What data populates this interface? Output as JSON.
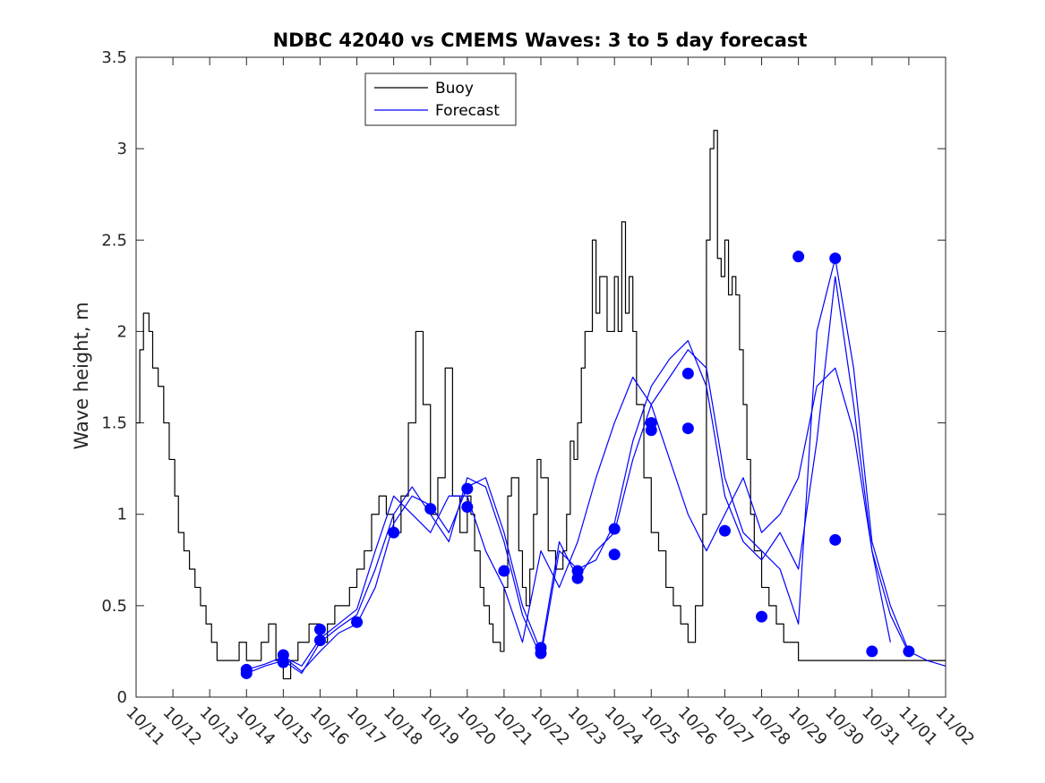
{
  "chart_data": {
    "type": "line",
    "title": "NDBC 42040 vs CMEMS Waves: 3 to 5 day forecast",
    "xlabel": "",
    "ylabel": "Wave height, m",
    "xlim": [
      0,
      22
    ],
    "ylim": [
      0,
      3.5
    ],
    "x_tick_labels": [
      "10/11",
      "10/12",
      "10/13",
      "10/14",
      "10/15",
      "10/16",
      "10/17",
      "10/18",
      "10/19",
      "10/20",
      "10/21",
      "10/22",
      "10/23",
      "10/24",
      "10/25",
      "10/26",
      "10/27",
      "10/28",
      "10/29",
      "10/30",
      "10/31",
      "11/01",
      "11/02"
    ],
    "y_ticks": [
      0,
      0.5,
      1,
      1.5,
      2,
      2.5,
      3,
      3.5
    ],
    "y_tick_labels": [
      "0",
      "0.5",
      "1",
      "1.5",
      "2",
      "2.5",
      "3",
      "3.5"
    ],
    "legend": {
      "position": "top-center",
      "entries": [
        "Buoy",
        "Forecast"
      ]
    },
    "colors": {
      "buoy": "#000000",
      "forecast": "#0000ff"
    },
    "series": [
      {
        "name": "Buoy",
        "style": "step",
        "x": [
          0,
          0.1,
          0.2,
          0.35,
          0.45,
          0.6,
          0.75,
          0.9,
          1.05,
          1.15,
          1.3,
          1.45,
          1.6,
          1.75,
          1.9,
          2.05,
          2.2,
          2.35,
          2.5,
          2.65,
          2.8,
          3.0,
          3.2,
          3.4,
          3.6,
          3.8,
          4.0,
          4.2,
          4.4,
          4.5,
          4.7,
          4.8,
          5.0,
          5.2,
          5.4,
          5.6,
          5.8,
          6.0,
          6.2,
          6.4,
          6.6,
          6.8,
          7.0,
          7.2,
          7.4,
          7.6,
          7.8,
          8.0,
          8.2,
          8.4,
          8.6,
          8.8,
          9.0,
          9.1,
          9.2,
          9.35,
          9.45,
          9.6,
          9.7,
          9.8,
          9.9,
          10.0,
          10.1,
          10.2,
          10.4,
          10.5,
          10.6,
          10.7,
          10.8,
          10.9,
          11.0,
          11.2,
          11.4,
          11.6,
          11.7,
          11.8,
          11.9,
          12.0,
          12.1,
          12.2,
          12.4,
          12.5,
          12.6,
          12.8,
          13.0,
          13.1,
          13.2,
          13.3,
          13.4,
          13.5,
          13.6,
          13.8,
          14.0,
          14.2,
          14.4,
          14.6,
          14.8,
          15.0,
          15.2,
          15.4,
          15.5,
          15.6,
          15.7,
          15.8,
          15.9,
          16.0,
          16.1,
          16.2,
          16.3,
          16.4,
          16.5,
          16.6,
          16.7,
          16.8,
          17.0,
          17.2,
          17.4,
          17.6,
          17.8,
          18.0,
          18.2,
          18.4,
          18.6,
          18.7,
          18.8,
          18.85,
          18.9,
          19.0,
          19.1,
          19.2,
          19.3,
          19.4,
          19.5,
          19.6,
          19.8,
          20.0,
          20.2,
          20.4,
          20.6,
          20.8,
          21.0,
          21.2,
          21.4,
          21.6,
          21.8,
          22.0
        ],
        "y": [
          1.5,
          1.9,
          2.1,
          2.0,
          1.8,
          1.7,
          1.5,
          1.3,
          1.1,
          0.9,
          0.8,
          0.7,
          0.6,
          0.5,
          0.4,
          0.3,
          0.2,
          0.2,
          0.2,
          0.2,
          0.3,
          0.2,
          0.2,
          0.3,
          0.4,
          0.2,
          0.1,
          0.2,
          0.3,
          0.3,
          0.4,
          0.4,
          0.3,
          0.4,
          0.5,
          0.5,
          0.6,
          0.7,
          0.8,
          1.0,
          1.1,
          1.0,
          0.9,
          1.1,
          1.5,
          2.0,
          1.6,
          1.0,
          1.2,
          1.8,
          1.1,
          0.9,
          1.1,
          1.0,
          0.8,
          0.6,
          0.5,
          0.4,
          0.3,
          0.3,
          0.25,
          0.6,
          1.1,
          1.2,
          0.8,
          0.6,
          0.5,
          0.7,
          1.0,
          1.3,
          1.2,
          0.8,
          0.7,
          0.8,
          1.0,
          1.4,
          1.3,
          1.5,
          1.8,
          2.0,
          2.5,
          2.1,
          2.3,
          2.0,
          2.3,
          2.0,
          2.6,
          2.1,
          2.3,
          2.0,
          1.6,
          1.2,
          0.9,
          0.8,
          0.6,
          0.5,
          0.4,
          0.3,
          0.5,
          1.0,
          2.5,
          3.0,
          3.1,
          2.4,
          2.3,
          2.5,
          2.2,
          2.3,
          2.2,
          1.9,
          1.6,
          1.3,
          1.0,
          0.8,
          0.6,
          0.5,
          0.4,
          0.3,
          0.3,
          0.2,
          0.2,
          0.2,
          0.2,
          0.2,
          0.2,
          0.2,
          0.2,
          0.2,
          0.2,
          0.2,
          0.2,
          0.2,
          0.2,
          0.2,
          0.2,
          0.2,
          0.2,
          0.2,
          0.2,
          0.2,
          0.2,
          0.2,
          0.2,
          0.2,
          0.2,
          0.2
        ]
      },
      {
        "name": "Forecast",
        "x": [
          3.0,
          3.5,
          4.0,
          4.5,
          5.0,
          5.5,
          6.0,
          6.5,
          7.0,
          7.5,
          8.0,
          8.5,
          9.0,
          9.5,
          10.0,
          10.5,
          11.0,
          11.5,
          12.0,
          12.5,
          13.0,
          13.5,
          14.0,
          14.5,
          15.0,
          15.5,
          16.0,
          16.5,
          17.0,
          17.5,
          18.0,
          18.5,
          19.0,
          19.5,
          20.0,
          20.5,
          21.0,
          21.5,
          22.0
        ],
        "y": [
          0.15,
          0.18,
          0.22,
          0.14,
          0.25,
          0.35,
          0.4,
          0.6,
          0.95,
          1.1,
          1.05,
          0.9,
          1.15,
          1.2,
          0.9,
          0.5,
          0.25,
          0.85,
          0.65,
          0.8,
          0.9,
          1.3,
          1.6,
          1.75,
          1.9,
          1.8,
          1.2,
          0.9,
          0.8,
          0.7,
          0.4,
          2.0,
          2.4,
          1.8,
          0.85,
          0.5,
          0.25,
          0.2,
          0.17
        ]
      },
      {
        "name": "Forecast",
        "x": [
          3.0,
          3.5,
          4.0,
          4.5,
          5.0,
          5.5,
          6.0,
          6.5,
          7.0,
          7.5,
          8.0,
          8.5,
          9.0,
          9.5,
          10.0,
          10.5,
          11.0,
          11.5,
          12.0,
          12.5,
          13.0,
          13.5,
          14.0,
          14.5,
          15.0,
          15.5,
          16.0,
          16.5,
          17.0,
          17.5,
          18.0,
          18.5,
          19.0,
          19.5,
          20.0,
          20.5,
          21.0
        ],
        "y": [
          0.13,
          0.17,
          0.2,
          0.13,
          0.3,
          0.38,
          0.45,
          0.7,
          1.0,
          1.15,
          1.0,
          0.85,
          1.2,
          1.15,
          0.85,
          0.45,
          0.22,
          0.8,
          0.7,
          0.75,
          0.95,
          1.4,
          1.7,
          1.85,
          1.95,
          1.7,
          1.1,
          0.85,
          0.75,
          0.9,
          0.7,
          1.4,
          2.3,
          1.6,
          0.8,
          0.45,
          0.24
        ]
      },
      {
        "name": "Forecast",
        "x": [
          4.0,
          4.5,
          5.0,
          5.5,
          6.0,
          6.5,
          7.0,
          7.5,
          8.0,
          8.5,
          9.0,
          9.5,
          10.0,
          10.5,
          11.0,
          11.5,
          12.0,
          12.5,
          13.0,
          13.5,
          14.0,
          14.5,
          15.0,
          15.5,
          16.0,
          16.5,
          17.0,
          17.5,
          18.0,
          18.5,
          19.0,
          19.5,
          20.0,
          20.5
        ],
        "y": [
          0.22,
          0.17,
          0.32,
          0.4,
          0.48,
          0.8,
          1.1,
          1.0,
          0.9,
          1.1,
          1.1,
          0.8,
          0.6,
          0.3,
          0.8,
          0.6,
          0.85,
          1.2,
          1.5,
          1.75,
          1.6,
          1.3,
          1.0,
          0.8,
          1.0,
          1.2,
          0.9,
          1.0,
          1.2,
          1.7,
          1.8,
          1.45,
          0.8,
          0.3
        ]
      }
    ],
    "markers": {
      "name": "Forecast",
      "x": [
        3.0,
        3.0,
        4.0,
        4.0,
        5.0,
        5.0,
        6.0,
        7.0,
        8.0,
        9.0,
        9.0,
        10.0,
        11.0,
        11.0,
        12.0,
        12.0,
        13.0,
        13.0,
        14.0,
        14.0,
        15.0,
        15.0,
        16.0,
        17.0,
        18.0,
        19.0,
        19.0,
        20.0,
        21.0
      ],
      "y": [
        0.15,
        0.13,
        0.23,
        0.19,
        0.37,
        0.31,
        0.41,
        0.9,
        1.03,
        1.14,
        1.04,
        0.69,
        0.27,
        0.24,
        0.69,
        0.65,
        0.92,
        0.78,
        1.5,
        1.46,
        1.77,
        1.47,
        0.91,
        0.44,
        2.41,
        2.4,
        0.86,
        0.25,
        0.25
      ]
    }
  }
}
